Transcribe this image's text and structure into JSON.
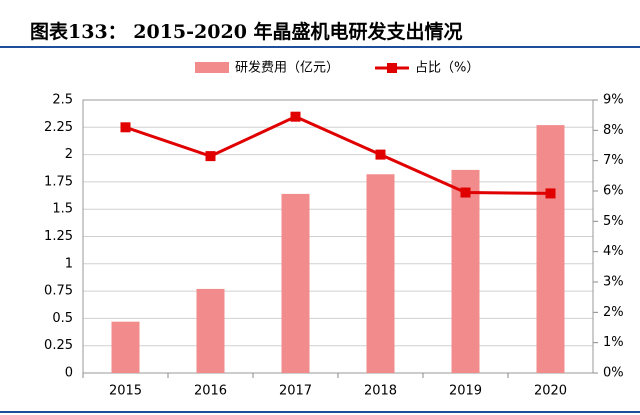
{
  "chart_data": {
    "type": "bar_line",
    "title": "图表133：  2015-2020 年晶盛机电研发支出情况",
    "categories": [
      "2015",
      "2016",
      "2017",
      "2018",
      "2019",
      "2020"
    ],
    "series": [
      {
        "name": "研发费用（亿元）",
        "type": "bar",
        "color": "#f28b8b",
        "values": [
          0.47,
          0.77,
          1.64,
          1.82,
          1.86,
          2.27
        ]
      },
      {
        "name": "占比（%）",
        "type": "line",
        "axis": "y2",
        "color": "#e00000",
        "values": [
          8.1,
          7.15,
          8.45,
          7.2,
          5.95,
          5.92
        ]
      }
    ],
    "ylim": [
      0,
      2.5
    ],
    "yticks": [
      0,
      0.25,
      0.5,
      0.75,
      1,
      1.25,
      1.5,
      1.75,
      2,
      2.25,
      2.5
    ],
    "y2lim": [
      0,
      9
    ],
    "y2ticks": [
      {
        "value": 0,
        "label": "0%"
      },
      {
        "value": 1,
        "label": "1%"
      },
      {
        "value": 2,
        "label": "2%"
      },
      {
        "value": 3,
        "label": "3%"
      },
      {
        "value": 4,
        "label": "4%"
      },
      {
        "value": 5,
        "label": "5%"
      },
      {
        "value": 6,
        "label": "6%"
      },
      {
        "value": 7,
        "label": "7%"
      },
      {
        "value": 8,
        "label": "8%"
      },
      {
        "value": 9,
        "label": "9%"
      }
    ],
    "grid": true
  }
}
